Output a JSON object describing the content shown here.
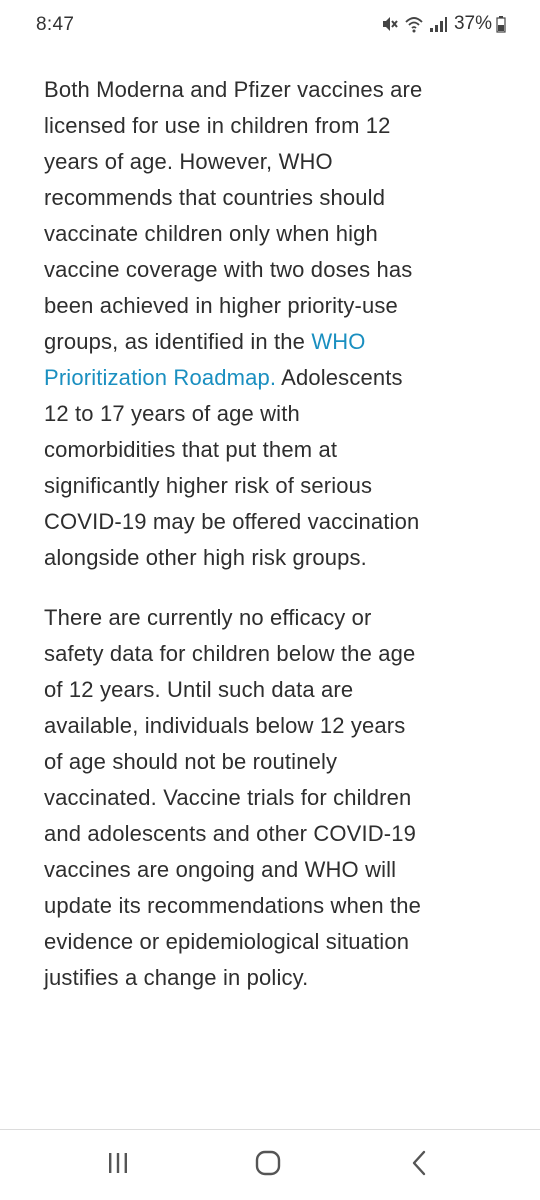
{
  "status_bar": {
    "time": "8:47",
    "battery": "37%",
    "icons": [
      "mute-icon",
      "wifi-icon",
      "signal-icon",
      "battery-icon"
    ]
  },
  "article": {
    "para1_before_link": "Both Moderna and Pfizer vaccines are licensed for use in children from 12 years of age. However, WHO recommends that countries should vaccinate children only when high vaccine coverage with two doses has been achieved in higher priority-use groups, as identified in the ",
    "para1_link": "WHO Prioritization Roadmap.",
    "para1_after_link": " Adolescents 12 to 17 years of age with comorbidities that put them at significantly higher risk of serious COVID-19 may be offered vaccination alongside other high risk groups.",
    "para2": "There are currently no efficacy or safety data for children below the age of 12 years. Until such data are available, individuals below 12 years of age should not be routinely vaccinated. Vaccine trials for children and adolescents and other COVID-19 vaccines are ongoing and WHO will update its recommendations when the evidence or epidemiological situation justifies a change in policy."
  },
  "nav_bar": {
    "buttons": [
      "recent-apps",
      "home",
      "back"
    ]
  },
  "colors": {
    "link": "#1a8fc0",
    "text": "#2e2e2e",
    "background": "#ffffff"
  }
}
